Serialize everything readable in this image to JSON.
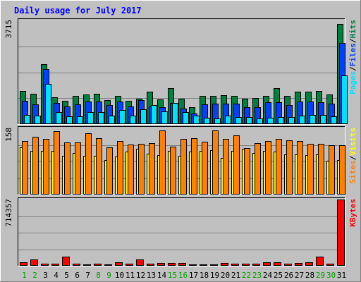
{
  "chart_data": {
    "type": "bar",
    "title": "Daily usage for July 2017",
    "categories": [
      "1",
      "2",
      "3",
      "4",
      "5",
      "6",
      "7",
      "8",
      "9",
      "10",
      "11",
      "12",
      "13",
      "14",
      "15",
      "16",
      "17",
      "18",
      "19",
      "20",
      "21",
      "22",
      "23",
      "24",
      "25",
      "26",
      "27",
      "28",
      "29",
      "30",
      "31"
    ],
    "weekend_days": [
      "1",
      "2",
      "8",
      "9",
      "15",
      "16",
      "22",
      "23",
      "29",
      "30"
    ],
    "colors": {
      "title": "#0000ff",
      "background": "#c0c0c0",
      "hits": "#008040",
      "files": "#0040ff",
      "pages": "#00e0ff",
      "visits": "#ffff00",
      "sites": "#ff8000",
      "kbytes": "#ff0000",
      "weekday_label": "#000000",
      "weekend_label": "#00a000"
    },
    "panels": [
      {
        "max_label": "3715",
        "ylim": [
          0,
          3715
        ],
        "legend": [
          "Pages",
          "Files",
          "Hits"
        ],
        "series": [
          {
            "name": "Hits",
            "values": [
              1180,
              1090,
              2140,
              960,
              840,
              1020,
              1060,
              1080,
              870,
              1020,
              840,
              920,
              1170,
              880,
              1290,
              900,
              610,
              1000,
              1020,
              1030,
              1020,
              920,
              930,
              1000,
              1290,
              1000,
              1150,
              1160,
              1180,
              1050,
              3600
            ]
          },
          {
            "name": "Files",
            "values": [
              830,
              720,
              1970,
              760,
              640,
              700,
              800,
              800,
              680,
              800,
              620,
              870,
              620,
              600,
              760,
              560,
              390,
              700,
              740,
              740,
              740,
              600,
              600,
              780,
              780,
              680,
              800,
              800,
              780,
              730,
              2900
            ]
          },
          {
            "name": "Pages",
            "values": [
              320,
              300,
              1440,
              420,
              290,
              290,
              420,
              440,
              300,
              500,
              300,
              540,
              680,
              450,
              770,
              440,
              300,
              230,
              210,
              300,
              250,
              260,
              190,
              240,
              260,
              250,
              310,
              330,
              330,
              290,
              1750
            ]
          }
        ]
      },
      {
        "max_label": "158",
        "ylim": [
          0,
          158
        ],
        "legend": [
          "Sites",
          "Visits"
        ],
        "series": [
          {
            "name": "Visits",
            "values": [
              112,
              104,
              104,
              104,
              92,
              100,
              93,
              92,
              83,
              91,
              103,
              109,
              97,
              94,
              105,
              93,
              103,
              104,
              106,
              87,
              105,
              109,
              100,
              104,
              102,
              96,
              96,
              94,
              96,
              80,
              82
            ]
          },
          {
            "name": "Sites",
            "values": [
              128,
              137,
              133,
              152,
              124,
              124,
              147,
              135,
              113,
              127,
              120,
              121,
              122,
              153,
              114,
              133,
              135,
              126,
              153,
              133,
              141,
              111,
              123,
              128,
              132,
              130,
              128,
              121,
              121,
              117,
              118
            ]
          }
        ]
      },
      {
        "max_label": "714357",
        "ylim": [
          0,
          714357
        ],
        "legend": [
          "KBytes"
        ],
        "series": [
          {
            "name": "KBytes",
            "values": [
              35000,
              72000,
              22000,
              20000,
              96000,
              22000,
              16000,
              25000,
              12000,
              35000,
              22000,
              70000,
              20000,
              28000,
              31000,
              32000,
              12000,
              18000,
              16000,
              32000,
              22000,
              24000,
              20000,
              35000,
              36000,
              20000,
              30000,
              35000,
              98000,
              20000,
              714357
            ]
          }
        ]
      }
    ]
  }
}
